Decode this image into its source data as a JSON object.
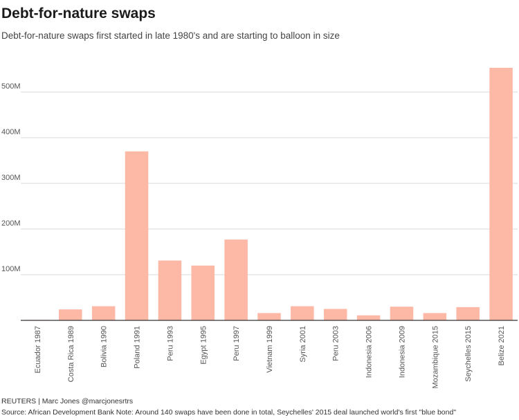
{
  "header": {
    "title": "Debt-for-nature swaps",
    "subtitle": "Debt-for-nature swaps first started in late 1980's and are starting to balloon in size"
  },
  "footer": {
    "byline": "REUTERS | Marc Jones @marcjonesrtrs",
    "source": "Source: African Development Bank Note: Around 140 swaps have been done in total, Seychelles' 2015 deal launched world's first \"blue bond\""
  },
  "colors": {
    "bar": "#fdb8a6",
    "grid": "#d9d9d9",
    "axis": "#333333",
    "tick_text": "#555555"
  },
  "chart_data": {
    "type": "bar",
    "title": "Debt-for-nature swaps",
    "xlabel": "",
    "ylabel": "",
    "categories": [
      "Ecuador 1987",
      "Costa Rica 1989",
      "Bolivia 1990",
      "Poland 1991",
      "Peru 1993",
      "Egypt 1995",
      "Peru 1997",
      "Vietnam 1999",
      "Syria 2001",
      "Peru 2003",
      "Indonesia 2006",
      "Indonesia 2009",
      "Mozambique 2015",
      "Seychelles 2015",
      "Belize 2021"
    ],
    "values": [
      1000000,
      24000000,
      31000000,
      370000000,
      131000000,
      120000000,
      177000000,
      16000000,
      31000000,
      25000000,
      11000000,
      30000000,
      16000000,
      29000000,
      553000000
    ],
    "ylim": [
      0,
      560000000
    ],
    "yticks": [
      100000000,
      200000000,
      300000000,
      400000000,
      500000000
    ],
    "ytick_labels": [
      "100M",
      "200M",
      "300M",
      "400M",
      "500M"
    ],
    "grid": true
  }
}
